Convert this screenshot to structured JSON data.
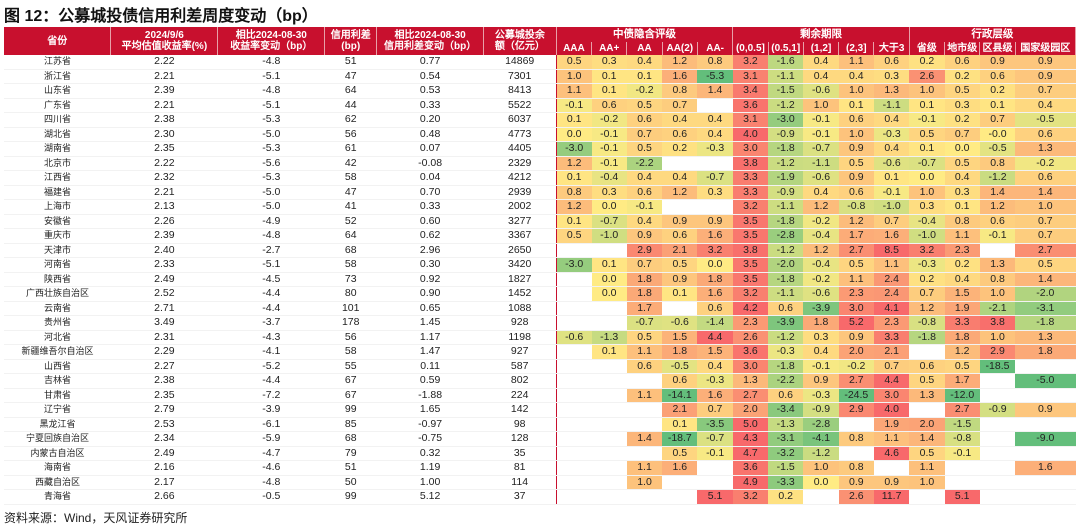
{
  "title": "图 12：公募城投债信用利差周度变动（bp）",
  "source": "资料来源：Wind，天风证券研究所",
  "header": {
    "province": "省份",
    "yield": "2024/9/6\n平均估值收益率(%)",
    "yield_chg": "相比2024-08-30\n收益率变动（bp）",
    "spread": "信用利差\n(bp)",
    "spread_chg": "相比2024-08-30\n信用利差变动（bp）",
    "balance": "公募城投余\n额（亿元）",
    "group_rating": "中债隐含评级",
    "group_term": "剩余期限",
    "group_admin": "行政层级",
    "rating_cols": [
      "AAA",
      "AA+",
      "AA",
      "AA(2)",
      "AA-"
    ],
    "term_cols": [
      "(0,0.5]",
      "(0.5,1]",
      "(1,2]",
      "(2,3]",
      "大于3"
    ],
    "admin_cols": [
      "省级",
      "地市级",
      "区县级",
      "国家级园区"
    ]
  },
  "colors": {
    "header_bg": "#c8102e",
    "scale_neg": "#63be7b",
    "scale_mid": "#ffeb84",
    "scale_pos": "#f8696b"
  },
  "rows": [
    {
      "province": "江苏省",
      "yield": "2.22",
      "yield_chg": "-4.8",
      "spread": "51",
      "spread_chg": "0.77",
      "balance": "14869",
      "rating": [
        "0.5",
        "0.3",
        "0.4",
        "1.2",
        "0.8"
      ],
      "term": [
        "3.2",
        "-1.6",
        "0.4",
        "1.1",
        "0.6"
      ],
      "admin": [
        "0.2",
        "0.6",
        "0.9",
        "0.9"
      ]
    },
    {
      "province": "浙江省",
      "yield": "2.21",
      "yield_chg": "-5.1",
      "spread": "47",
      "spread_chg": "0.54",
      "balance": "7301",
      "rating": [
        "1.0",
        "0.1",
        "0.1",
        "1.6",
        "-5.3"
      ],
      "term": [
        "3.1",
        "-1.1",
        "0.4",
        "0.4",
        "0.3"
      ],
      "admin": [
        "2.6",
        "0.2",
        "0.6",
        "0.9"
      ]
    },
    {
      "province": "山东省",
      "yield": "2.39",
      "yield_chg": "-4.8",
      "spread": "64",
      "spread_chg": "0.53",
      "balance": "8413",
      "rating": [
        "1.1",
        "0.1",
        "-0.2",
        "0.8",
        "1.4"
      ],
      "term": [
        "3.4",
        "-1.5",
        "-0.6",
        "1.0",
        "1.3"
      ],
      "admin": [
        "1.0",
        "0.5",
        "0.2",
        "0.7"
      ]
    },
    {
      "province": "广东省",
      "yield": "2.21",
      "yield_chg": "-5.1",
      "spread": "44",
      "spread_chg": "0.33",
      "balance": "5522",
      "rating": [
        "-0.1",
        "0.6",
        "0.5",
        "0.7",
        ""
      ],
      "term": [
        "3.6",
        "-1.2",
        "1.0",
        "0.1",
        "-1.1"
      ],
      "admin": [
        "0.1",
        "0.3",
        "0.1",
        "0.4"
      ]
    },
    {
      "province": "四川省",
      "yield": "2.38",
      "yield_chg": "-5.3",
      "spread": "62",
      "spread_chg": "0.20",
      "balance": "6037",
      "rating": [
        "0.1",
        "-0.2",
        "0.6",
        "0.4",
        "0.4"
      ],
      "term": [
        "3.1",
        "-3.0",
        "-0.1",
        "0.6",
        "0.4"
      ],
      "admin": [
        "-0.1",
        "0.2",
        "0.7",
        "-0.5"
      ]
    },
    {
      "province": "湖北省",
      "yield": "2.30",
      "yield_chg": "-5.0",
      "spread": "56",
      "spread_chg": "0.48",
      "balance": "4773",
      "rating": [
        "0.0",
        "-0.1",
        "0.7",
        "0.6",
        "0.4"
      ],
      "term": [
        "4.0",
        "-0.9",
        "-0.1",
        "1.0",
        "-0.3"
      ],
      "admin": [
        "0.5",
        "0.7",
        "-0.0",
        "0.6"
      ]
    },
    {
      "province": "湖南省",
      "yield": "2.35",
      "yield_chg": "-5.3",
      "spread": "61",
      "spread_chg": "0.07",
      "balance": "4405",
      "rating": [
        "-3.0",
        "-0.1",
        "0.5",
        "0.2",
        "-0.3"
      ],
      "term": [
        "3.0",
        "-1.8",
        "-0.7",
        "0.9",
        "0.4"
      ],
      "admin": [
        "0.1",
        "0.0",
        "-0.5",
        "1.3"
      ]
    },
    {
      "province": "北京市",
      "yield": "2.22",
      "yield_chg": "-5.6",
      "spread": "42",
      "spread_chg": "-0.08",
      "balance": "2329",
      "rating": [
        "1.2",
        "-0.1",
        "-2.2",
        "",
        ""
      ],
      "term": [
        "3.8",
        "-1.2",
        "-1.1",
        "0.5",
        "-0.6"
      ],
      "admin": [
        "-0.7",
        "0.5",
        "0.8",
        "-0.2"
      ]
    },
    {
      "province": "江西省",
      "yield": "2.32",
      "yield_chg": "-5.3",
      "spread": "58",
      "spread_chg": "0.04",
      "balance": "4212",
      "rating": [
        "0.1",
        "-0.4",
        "0.4",
        "0.4",
        "-0.7"
      ],
      "term": [
        "3.3",
        "-1.9",
        "-0.6",
        "0.9",
        "0.1"
      ],
      "admin": [
        "0.0",
        "0.4",
        "-1.2",
        "0.6"
      ]
    },
    {
      "province": "福建省",
      "yield": "2.21",
      "yield_chg": "-5.0",
      "spread": "47",
      "spread_chg": "0.70",
      "balance": "2939",
      "rating": [
        "0.8",
        "0.3",
        "0.6",
        "1.2",
        "0.3"
      ],
      "term": [
        "3.3",
        "-0.9",
        "0.4",
        "0.6",
        "-0.1"
      ],
      "admin": [
        "1.0",
        "0.3",
        "1.4",
        "1.4"
      ]
    },
    {
      "province": "上海市",
      "yield": "2.13",
      "yield_chg": "-5.0",
      "spread": "41",
      "spread_chg": "0.33",
      "balance": "2002",
      "rating": [
        "1.2",
        "0.0",
        "-0.1",
        "",
        ""
      ],
      "term": [
        "3.2",
        "-1.1",
        "1.2",
        "-0.8",
        "-1.0"
      ],
      "admin": [
        "0.3",
        "0.1",
        "1.2",
        "1.0"
      ]
    },
    {
      "province": "安徽省",
      "yield": "2.26",
      "yield_chg": "-4.9",
      "spread": "52",
      "spread_chg": "0.60",
      "balance": "3277",
      "rating": [
        "0.1",
        "-0.7",
        "0.4",
        "0.9",
        "0.9"
      ],
      "term": [
        "3.5",
        "-1.8",
        "-0.2",
        "1.2",
        "0.7"
      ],
      "admin": [
        "-0.4",
        "0.8",
        "0.6",
        "0.7"
      ]
    },
    {
      "province": "重庆市",
      "yield": "2.39",
      "yield_chg": "-4.8",
      "spread": "64",
      "spread_chg": "0.62",
      "balance": "3367",
      "rating": [
        "0.5",
        "-1.0",
        "0.9",
        "0.6",
        "1.6"
      ],
      "term": [
        "3.5",
        "-2.8",
        "-0.4",
        "1.7",
        "1.6"
      ],
      "admin": [
        "-1.0",
        "1.1",
        "-0.1",
        "0.7"
      ]
    },
    {
      "province": "天津市",
      "yield": "2.40",
      "yield_chg": "-2.7",
      "spread": "68",
      "spread_chg": "2.96",
      "balance": "2650",
      "rating": [
        "",
        "",
        "2.9",
        "2.1",
        "3.2"
      ],
      "term": [
        "3.8",
        "-1.2",
        "1.2",
        "2.7",
        "8.5"
      ],
      "admin": [
        "3.2",
        "2.3",
        "",
        "2.7"
      ]
    },
    {
      "province": "河南省",
      "yield": "2.33",
      "yield_chg": "-5.1",
      "spread": "58",
      "spread_chg": "0.30",
      "balance": "3420",
      "rating": [
        "-3.0",
        "0.1",
        "0.7",
        "0.5",
        "0.0"
      ],
      "term": [
        "3.5",
        "-2.0",
        "-0.4",
        "0.5",
        "1.1"
      ],
      "admin": [
        "-0.3",
        "0.2",
        "1.3",
        "0.5"
      ]
    },
    {
      "province": "陕西省",
      "yield": "2.49",
      "yield_chg": "-4.5",
      "spread": "73",
      "spread_chg": "0.92",
      "balance": "1827",
      "rating": [
        "",
        "0.0",
        "1.8",
        "0.9",
        "1.8"
      ],
      "term": [
        "3.5",
        "-1.8",
        "-0.2",
        "1.1",
        "2.4"
      ],
      "admin": [
        "0.2",
        "0.4",
        "0.8",
        "1.4"
      ]
    },
    {
      "province": "广西壮族自治区",
      "yield": "2.52",
      "yield_chg": "-4.4",
      "spread": "80",
      "spread_chg": "0.90",
      "balance": "1452",
      "rating": [
        "",
        "0.0",
        "1.8",
        "0.1",
        "1.6"
      ],
      "term": [
        "3.2",
        "-1.1",
        "-0.6",
        "2.3",
        "2.4"
      ],
      "admin": [
        "0.7",
        "1.5",
        "1.0",
        "-2.0"
      ]
    },
    {
      "province": "云南省",
      "yield": "2.71",
      "yield_chg": "-4.4",
      "spread": "101",
      "spread_chg": "0.65",
      "balance": "1088",
      "rating": [
        "",
        "",
        "1.7",
        "",
        "0.6"
      ],
      "term": [
        "4.2",
        "0.6",
        "-3.9",
        "3.0",
        "4.1"
      ],
      "admin": [
        "1.2",
        "1.9",
        "-2.1",
        "-3.1"
      ]
    },
    {
      "province": "贵州省",
      "yield": "3.49",
      "yield_chg": "-3.7",
      "spread": "178",
      "spread_chg": "1.45",
      "balance": "928",
      "rating": [
        "",
        "",
        "-0.7",
        "-0.6",
        "-1.4"
      ],
      "term": [
        "2.3",
        "-3.9",
        "1.8",
        "5.2",
        "2.3"
      ],
      "admin": [
        "-0.8",
        "3.3",
        "3.8",
        "-1.8"
      ]
    },
    {
      "province": "河北省",
      "yield": "2.31",
      "yield_chg": "-4.3",
      "spread": "56",
      "spread_chg": "1.17",
      "balance": "1198",
      "rating": [
        "-0.6",
        "-1.3",
        "0.5",
        "1.5",
        "4.4"
      ],
      "term": [
        "2.6",
        "-1.2",
        "0.3",
        "0.9",
        "3.3"
      ],
      "admin": [
        "-1.8",
        "1.8",
        "1.0",
        "1.3"
      ]
    },
    {
      "province": "新疆维吾尔自治区",
      "yield": "2.29",
      "yield_chg": "-4.1",
      "spread": "58",
      "spread_chg": "1.47",
      "balance": "927",
      "rating": [
        "",
        "0.1",
        "1.1",
        "1.8",
        "1.5"
      ],
      "term": [
        "3.6",
        "-0.3",
        "0.4",
        "2.0",
        "2.1"
      ],
      "admin": [
        "",
        "1.2",
        "2.9",
        "1.8"
      ]
    },
    {
      "province": "山西省",
      "yield": "2.27",
      "yield_chg": "-5.2",
      "spread": "55",
      "spread_chg": "0.11",
      "balance": "587",
      "rating": [
        "",
        "",
        "0.6",
        "-0.5",
        "0.4"
      ],
      "term": [
        "3.0",
        "-1.8",
        "-0.1",
        "-0.2",
        "0.7"
      ],
      "admin": [
        "0.6",
        "0.5",
        "-18.5",
        ""
      ]
    },
    {
      "province": "吉林省",
      "yield": "2.38",
      "yield_chg": "-4.4",
      "spread": "67",
      "spread_chg": "0.59",
      "balance": "802",
      "rating": [
        "",
        "",
        "",
        "0.6",
        "-0.3"
      ],
      "term": [
        "1.3",
        "-2.2",
        "0.9",
        "2.7",
        "4.4"
      ],
      "admin": [
        "0.5",
        "1.7",
        "",
        "-5.0"
      ]
    },
    {
      "province": "甘肃省",
      "yield": "2.35",
      "yield_chg": "-7.2",
      "spread": "67",
      "spread_chg": "-1.88",
      "balance": "224",
      "rating": [
        "",
        "",
        "1.1",
        "-14.1",
        "1.6"
      ],
      "term": [
        "2.7",
        "0.6",
        "-0.3",
        "-24.5",
        "3.0"
      ],
      "admin": [
        "1.3",
        "-12.0",
        "",
        ""
      ]
    },
    {
      "province": "辽宁省",
      "yield": "2.79",
      "yield_chg": "-3.9",
      "spread": "99",
      "spread_chg": "1.65",
      "balance": "142",
      "rating": [
        "",
        "",
        "",
        "2.1",
        "0.7"
      ],
      "term": [
        "2.0",
        "-3.4",
        "-0.9",
        "2.9",
        "4.0"
      ],
      "admin": [
        "",
        "2.7",
        "-0.9",
        "0.9"
      ]
    },
    {
      "province": "黑龙江省",
      "yield": "2.53",
      "yield_chg": "-6.1",
      "spread": "85",
      "spread_chg": "-0.97",
      "balance": "98",
      "rating": [
        "",
        "",
        "",
        "0.1",
        "-3.5"
      ],
      "term": [
        "5.0",
        "-1.3",
        "-2.8",
        "",
        "1.9"
      ],
      "admin": [
        "2.0",
        "-1.5",
        "",
        ""
      ]
    },
    {
      "province": "宁夏回族自治区",
      "yield": "2.34",
      "yield_chg": "-5.9",
      "spread": "68",
      "spread_chg": "-0.75",
      "balance": "128",
      "rating": [
        "",
        "",
        "1.4",
        "-18.7",
        "-0.7"
      ],
      "term": [
        "4.3",
        "-3.1",
        "-4.1",
        "0.8",
        "1.1"
      ],
      "admin": [
        "1.4",
        "-0.8",
        "",
        "-9.0"
      ]
    },
    {
      "province": "内蒙古自治区",
      "yield": "2.49",
      "yield_chg": "-4.7",
      "spread": "79",
      "spread_chg": "0.32",
      "balance": "35",
      "rating": [
        "",
        "",
        "",
        "0.5",
        "-0.1"
      ],
      "term": [
        "4.7",
        "-3.2",
        "-1.2",
        "",
        "4.6"
      ],
      "admin": [
        "0.5",
        "-0.1",
        "",
        ""
      ]
    },
    {
      "province": "海南省",
      "yield": "2.16",
      "yield_chg": "-4.6",
      "spread": "51",
      "spread_chg": "1.19",
      "balance": "81",
      "rating": [
        "",
        "",
        "1.1",
        "1.6",
        ""
      ],
      "term": [
        "3.6",
        "-1.5",
        "1.0",
        "0.8",
        ""
      ],
      "admin": [
        "1.1",
        "",
        "",
        "1.6"
      ]
    },
    {
      "province": "西藏自治区",
      "yield": "2.17",
      "yield_chg": "-4.8",
      "spread": "50",
      "spread_chg": "1.00",
      "balance": "114",
      "rating": [
        "",
        "",
        "1.0",
        "",
        ""
      ],
      "term": [
        "4.9",
        "-3.3",
        "0.0",
        "0.9",
        "0.9"
      ],
      "admin": [
        "1.0",
        "",
        "",
        ""
      ]
    },
    {
      "province": "青海省",
      "yield": "2.66",
      "yield_chg": "-0.5",
      "spread": "99",
      "spread_chg": "5.12",
      "balance": "37",
      "rating": [
        "",
        "",
        "",
        "",
        "5.1"
      ],
      "term": [
        "3.2",
        "0.2",
        "",
        "2.6",
        "11.7"
      ],
      "admin": [
        "",
        "5.1",
        "",
        ""
      ]
    }
  ]
}
